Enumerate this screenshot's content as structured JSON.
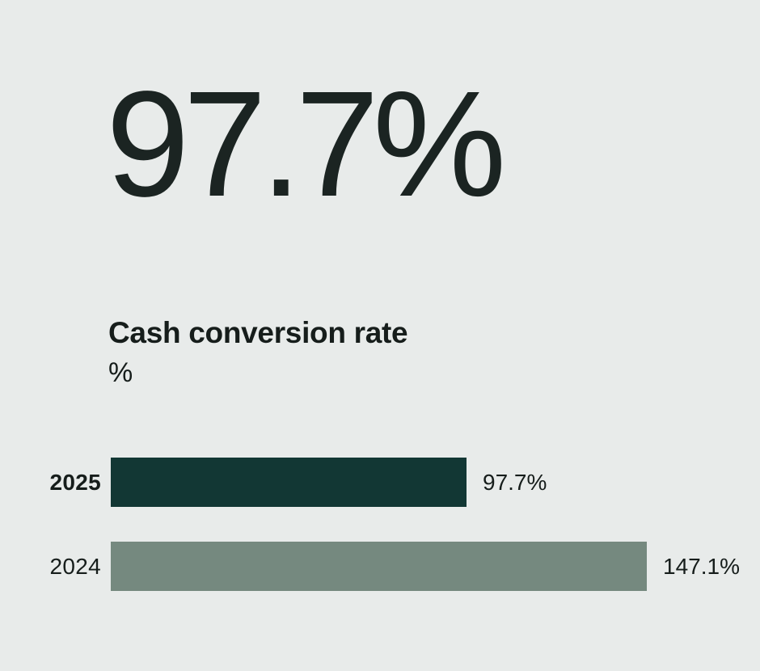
{
  "headline": {
    "value": "97.7%"
  },
  "title": {
    "text": "Cash conversion rate",
    "unit": "%"
  },
  "chart_data": {
    "type": "bar",
    "orientation": "horizontal",
    "title": "Cash conversion rate",
    "ylabel": "%",
    "xlabel": "",
    "categories": [
      "2025",
      "2024"
    ],
    "values": [
      97.7,
      147.1
    ],
    "value_labels": [
      "97.7%",
      "147.1%"
    ],
    "xlim": [
      0,
      160
    ],
    "grid": false,
    "legend": "none",
    "bar_colors": [
      "#123734",
      "#75897f"
    ],
    "highlight_category": "2025"
  },
  "colors": {
    "background": "#e8ebea",
    "text": "#1a2220",
    "bar_2025": "#123734",
    "bar_2024": "#75897f"
  }
}
